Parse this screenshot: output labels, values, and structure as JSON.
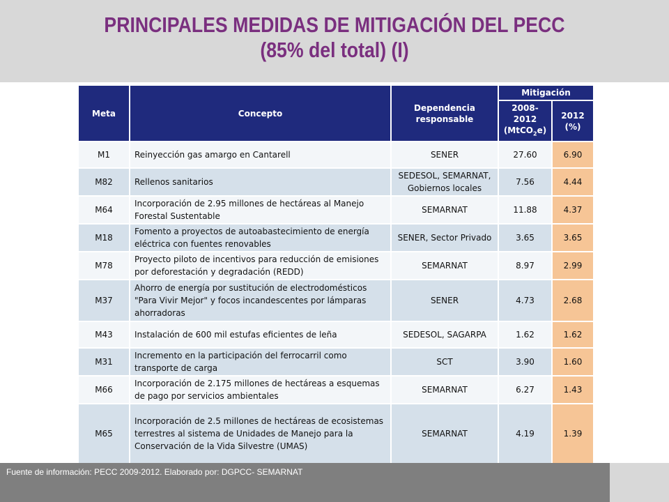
{
  "title": {
    "line1": "PRINCIPALES MEDIDAS DE MITIGACIÓN DEL PECC",
    "line2": "(85% del total) (I)"
  },
  "table": {
    "headers": {
      "meta": "Meta",
      "concepto": "Concepto",
      "dependencia": "Dependencia responsable",
      "mitigacion": "Mitigación",
      "col_2008_line1": "2008-2012",
      "col_2008_line2_pre": "(MtCO",
      "col_2008_sub": "2",
      "col_2008_line2_post": "e)",
      "col_2012_line1": "2012",
      "col_2012_line2": "(%)"
    },
    "rows": [
      {
        "meta": "M1",
        "concepto": "Reinyección gas amargo en Cantarell",
        "dependencia": "SENER",
        "mt": "27.60",
        "pct": "6.90"
      },
      {
        "meta": "M82",
        "concepto": "Rellenos sanitarios",
        "dependencia": "SEDESOL, SEMARNAT, Gobiernos locales",
        "mt": "7.56",
        "pct": "4.44"
      },
      {
        "meta": "M64",
        "concepto": "Incorporación de 2.95 millones de hectáreas al Manejo Forestal Sustentable",
        "dependencia": "SEMARNAT",
        "mt": "11.88",
        "pct": "4.37"
      },
      {
        "meta": "M18",
        "concepto": "Fomento a proyectos de  autoabastecimiento de energía eléctrica con fuentes renovables",
        "dependencia": "SENER, Sector Privado",
        "mt": "3.65",
        "pct": "3.65"
      },
      {
        "meta": "M78",
        "concepto": "Proyecto piloto de incentivos para reducción de emisiones por deforestación y degradación (REDD)",
        "dependencia": "SEMARNAT",
        "mt": "8.97",
        "pct": "2.99"
      },
      {
        "meta": "M37",
        "concepto": "Ahorro de energía por sustitución de electrodomésticos \"Para Vivir Mejor\" y focos incandescentes por lámparas ahorradoras",
        "dependencia": "SENER",
        "mt": "4.73",
        "pct": "2.68"
      },
      {
        "meta": "M43",
        "concepto": "Instalación de 600 mil estufas eficientes de leña",
        "dependencia": "SEDESOL, SAGARPA",
        "mt": "1.62",
        "pct": "1.62"
      },
      {
        "meta": "M31",
        "concepto": "Incremento en la participación del ferrocarril como transporte de carga",
        "dependencia": "SCT",
        "mt": "3.90",
        "pct": "1.60"
      },
      {
        "meta": "M66",
        "concepto": "Incorporación de 2.175 millones de hectáreas a esquemas de pago por servicios ambientales",
        "dependencia": "SEMARNAT",
        "mt": "6.27",
        "pct": "1.43"
      },
      {
        "meta": "M65",
        "concepto": "Incorporación de 2.5 millones de hectáreas de ecosistemas terrestres al sistema de Unidades de Manejo para la Conservación de la Vida Silvestre (UMAS)",
        "dependencia": "SEMARNAT",
        "mt": "4.19",
        "pct": "1.39"
      }
    ]
  },
  "footer": {
    "text": "Fuente de información: PECC 2009-2012. Elaborado por: DGPCC- SEMARNAT"
  },
  "colors": {
    "title": "#7a2f7f",
    "header_bg": "#1f2a7d",
    "pct_bg": "#f6c596",
    "row_light": "#f3f6f9",
    "row_dark": "#d5e0ea",
    "footer_bg": "#7f7f7f",
    "top_band": "#d8d8d8"
  }
}
